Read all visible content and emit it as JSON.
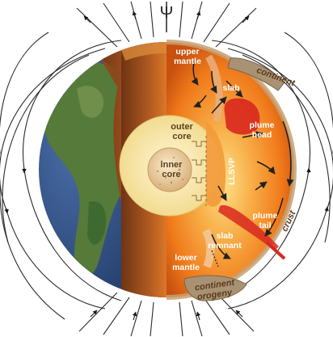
{
  "symbols": {
    "rotation_axis": "Ψ"
  },
  "labels": {
    "upper_mantle": [
      "upper",
      "mantle"
    ],
    "slab": "slab",
    "continent_top": "continent",
    "outer_core": [
      "outer",
      "core"
    ],
    "inner_core": [
      "inner",
      "core"
    ],
    "plume_head": [
      "plume",
      "head"
    ],
    "llsvp": "LLSVP",
    "plume_tail": [
      "plume",
      "tail"
    ],
    "crust": "crust",
    "slab_remnant": [
      "slab",
      "remnant"
    ],
    "lower_mantle": [
      "lower",
      "mantle"
    ],
    "continent_orogeny": [
      "continent",
      "orogeny"
    ]
  },
  "colors": {
    "ocean": "#2e4f86",
    "land": "#4e7a3c",
    "mantle_hot": "#f07a1a",
    "mantle_warm": "#f6a83a",
    "outer_core": "#f8e7a0",
    "inner_core": "#e8c98e",
    "plume": "#d8281e",
    "continent": "#a99274",
    "field_line": "#333333"
  },
  "icons": [
    "rotation-axis-icon",
    "magnetic-field-lines",
    "convection-arrows"
  ]
}
